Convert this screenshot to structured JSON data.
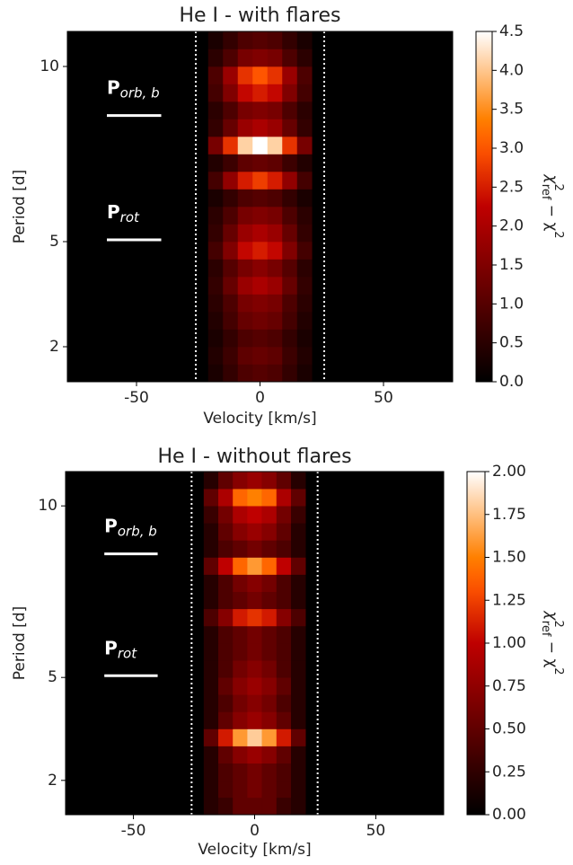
{
  "chart_data": [
    {
      "type": "heatmap",
      "title": "He I - with flares",
      "xlabel": "Velocity [km/s]",
      "ylabel": "Period [d]",
      "colorbar_label": {
        "base": "χ",
        "sup": "2",
        "sub": "ref",
        "rest": " − χ",
        "sup2": "2"
      },
      "xlim": [
        -78,
        78
      ],
      "xticks": [
        -50,
        0,
        50
      ],
      "ylim": [
        1,
        11
      ],
      "yticks": [
        2,
        5,
        10
      ],
      "clim": [
        0,
        4.5
      ],
      "cticks": [
        {
          "value": 0,
          "label": "0.0"
        },
        {
          "value": 0.5,
          "label": "0.5"
        },
        {
          "value": 1,
          "label": "1.0"
        },
        {
          "value": 1.5,
          "label": "1.5"
        },
        {
          "value": 2,
          "label": "2.0"
        },
        {
          "value": 2.5,
          "label": "2.5"
        },
        {
          "value": 3,
          "label": "3.0"
        },
        {
          "value": 3.5,
          "label": "3.5"
        },
        {
          "value": 4,
          "label": "4.0"
        },
        {
          "value": 4.5,
          "label": "4.5"
        }
      ],
      "vlines": [
        -26,
        26
      ],
      "annotations": [
        {
          "text": "P",
          "sub": "orb, b",
          "period": 8.6
        },
        {
          "text": "P",
          "sub": "rot",
          "period": 5.05
        }
      ],
      "x": [
        -18,
        -12,
        -6,
        0,
        6,
        12,
        18
      ],
      "y": [
        1.25,
        1.75,
        2.25,
        2.75,
        3.25,
        3.75,
        4.25,
        4.75,
        5.25,
        5.75,
        6.25,
        6.75,
        7.25,
        7.75,
        8.25,
        8.75,
        9.25,
        9.75,
        10.25,
        10.75
      ],
      "z": [
        [
          0.3,
          0.6,
          0.9,
          1.0,
          0.9,
          0.6,
          0.3
        ],
        [
          0.4,
          0.7,
          1.1,
          1.2,
          1.1,
          0.7,
          0.4
        ],
        [
          0.3,
          0.6,
          0.9,
          1.0,
          0.9,
          0.6,
          0.3
        ],
        [
          0.4,
          0.8,
          1.2,
          1.3,
          1.2,
          0.8,
          0.4
        ],
        [
          0.5,
          0.9,
          1.4,
          1.5,
          1.4,
          0.9,
          0.5
        ],
        [
          0.6,
          1.2,
          1.8,
          2.0,
          1.8,
          1.2,
          0.6
        ],
        [
          0.5,
          1.0,
          1.4,
          1.6,
          1.4,
          1.0,
          0.5
        ],
        [
          0.8,
          1.5,
          2.3,
          2.5,
          2.3,
          1.5,
          0.8
        ],
        [
          0.6,
          1.2,
          1.8,
          2.0,
          1.8,
          1.2,
          0.6
        ],
        [
          0.5,
          0.9,
          1.4,
          1.5,
          1.4,
          0.9,
          0.5
        ],
        [
          0.3,
          0.6,
          0.9,
          1.0,
          0.9,
          0.6,
          0.3
        ],
        [
          0.8,
          1.7,
          2.5,
          2.8,
          2.5,
          1.7,
          0.8
        ],
        [
          0.4,
          0.7,
          1.1,
          1.2,
          1.1,
          0.7,
          0.4
        ],
        [
          1.4,
          2.7,
          4.1,
          4.5,
          4.1,
          2.7,
          1.4
        ],
        [
          0.6,
          1.2,
          1.8,
          2.0,
          1.8,
          1.2,
          0.6
        ],
        [
          0.5,
          0.9,
          1.4,
          1.5,
          1.4,
          0.9,
          0.5
        ],
        [
          0.8,
          1.5,
          2.3,
          2.5,
          2.3,
          1.5,
          0.8
        ],
        [
          0.9,
          1.8,
          2.7,
          3.0,
          2.7,
          1.8,
          0.9
        ],
        [
          0.5,
          0.9,
          1.4,
          1.5,
          1.4,
          0.9,
          0.5
        ],
        [
          0.3,
          0.6,
          0.9,
          1.0,
          0.9,
          0.6,
          0.3
        ]
      ]
    },
    {
      "type": "heatmap",
      "title": "He I - without flares",
      "xlabel": "Velocity [km/s]",
      "ylabel": "Period [d]",
      "colorbar_label": {
        "base": "χ",
        "sup": "2",
        "sub": "ref",
        "rest": " − χ",
        "sup2": "2"
      },
      "xlim": [
        -78,
        78
      ],
      "xticks": [
        -50,
        0,
        50
      ],
      "ylim": [
        1,
        11
      ],
      "yticks": [
        2,
        5,
        10
      ],
      "clim": [
        0,
        2
      ],
      "cticks": [
        {
          "value": 0,
          "label": "0.00"
        },
        {
          "value": 0.25,
          "label": "0.25"
        },
        {
          "value": 0.5,
          "label": "0.50"
        },
        {
          "value": 0.75,
          "label": "0.75"
        },
        {
          "value": 1,
          "label": "1.00"
        },
        {
          "value": 1.25,
          "label": "1.25"
        },
        {
          "value": 1.5,
          "label": "1.50"
        },
        {
          "value": 1.75,
          "label": "1.75"
        },
        {
          "value": 2,
          "label": "2.00"
        }
      ],
      "vlines": [
        -26,
        26
      ],
      "annotations": [
        {
          "text": "P",
          "sub": "orb, b",
          "period": 8.6
        },
        {
          "text": "P",
          "sub": "rot",
          "period": 5.05
        }
      ],
      "x": [
        -18,
        -12,
        -6,
        0,
        6,
        12,
        18
      ],
      "y": [
        1.25,
        1.75,
        2.25,
        2.75,
        3.25,
        3.75,
        4.25,
        4.75,
        5.25,
        5.75,
        6.25,
        6.75,
        7.25,
        7.75,
        8.25,
        8.75,
        9.25,
        9.75,
        10.25,
        10.75
      ],
      "z": [
        [
          0.2,
          0.3,
          0.5,
          0.5,
          0.5,
          0.3,
          0.2
        ],
        [
          0.2,
          0.4,
          0.5,
          0.6,
          0.5,
          0.4,
          0.2
        ],
        [
          0.2,
          0.4,
          0.5,
          0.6,
          0.5,
          0.4,
          0.2
        ],
        [
          0.2,
          0.5,
          0.7,
          0.8,
          0.7,
          0.5,
          0.2
        ],
        [
          0.5,
          1.1,
          1.6,
          1.8,
          1.6,
          1.1,
          0.5
        ],
        [
          0.2,
          0.5,
          0.7,
          0.8,
          0.7,
          0.5,
          0.2
        ],
        [
          0.2,
          0.4,
          0.6,
          0.7,
          0.6,
          0.4,
          0.2
        ],
        [
          0.2,
          0.5,
          0.7,
          0.8,
          0.7,
          0.5,
          0.2
        ],
        [
          0.2,
          0.4,
          0.6,
          0.7,
          0.6,
          0.4,
          0.2
        ],
        [
          0.2,
          0.4,
          0.5,
          0.6,
          0.5,
          0.4,
          0.2
        ],
        [
          0.2,
          0.4,
          0.5,
          0.6,
          0.5,
          0.4,
          0.2
        ],
        [
          0.4,
          0.7,
          1.1,
          1.2,
          1.1,
          0.7,
          0.4
        ],
        [
          0.2,
          0.4,
          0.5,
          0.6,
          0.5,
          0.4,
          0.2
        ],
        [
          0.2,
          0.4,
          0.6,
          0.7,
          0.6,
          0.4,
          0.2
        ],
        [
          0.5,
          1.0,
          1.4,
          1.6,
          1.4,
          1.0,
          0.5
        ],
        [
          0.2,
          0.4,
          0.5,
          0.6,
          0.5,
          0.4,
          0.2
        ],
        [
          0.2,
          0.5,
          0.7,
          0.8,
          0.7,
          0.5,
          0.2
        ],
        [
          0.3,
          0.6,
          0.9,
          1.0,
          0.9,
          0.6,
          0.3
        ],
        [
          0.5,
          0.9,
          1.4,
          1.5,
          1.4,
          0.9,
          0.5
        ],
        [
          0.2,
          0.5,
          0.7,
          0.8,
          0.7,
          0.5,
          0.2
        ]
      ]
    }
  ]
}
